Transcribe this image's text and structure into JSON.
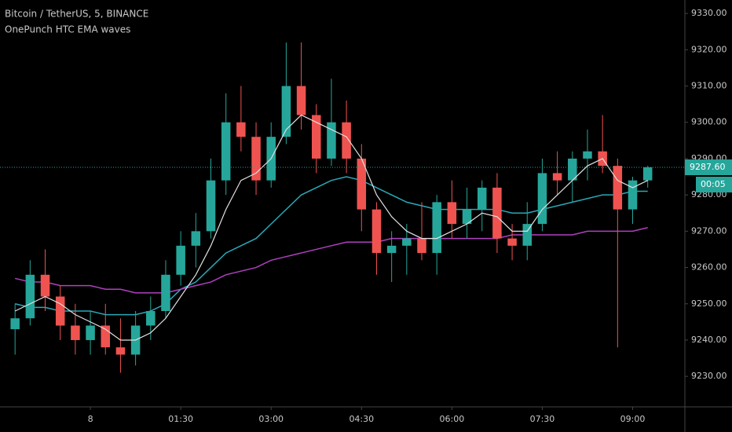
{
  "chart_data": {
    "type": "candlestick",
    "title": "Bitcoin / TetherUS, 5, BINANCE",
    "subtitle": "OnePunch HTC EMA waves",
    "x": [
      -75,
      -60,
      -45,
      -30,
      -15,
      0,
      15,
      30,
      45,
      60,
      75,
      90,
      105,
      120,
      135,
      150,
      165,
      180,
      195,
      210,
      225,
      240,
      255,
      270,
      285,
      300,
      315,
      330,
      345,
      360,
      375,
      390,
      405,
      420,
      435,
      450,
      465,
      480,
      495,
      510,
      525,
      540,
      555
    ],
    "open": [
      9243,
      9246,
      9258,
      9252,
      9244,
      9240,
      9244,
      9238,
      9236,
      9244,
      9248,
      9258,
      9266,
      9270,
      9284,
      9300,
      9296,
      9284,
      9296,
      9310,
      9302,
      9290,
      9300,
      9290,
      9276,
      9264,
      9266,
      9268,
      9264,
      9278,
      9272,
      9276,
      9282,
      9268,
      9266,
      9272,
      9286,
      9284,
      9290,
      9292,
      9288,
      9276,
      9284
    ],
    "high": [
      9250,
      9262,
      9265,
      9255,
      9250,
      9248,
      9250,
      9246,
      9248,
      9252,
      9262,
      9270,
      9275,
      9290,
      9308,
      9310,
      9300,
      9300,
      9322,
      9322,
      9305,
      9312,
      9306,
      9294,
      9278,
      9270,
      9272,
      9278,
      9280,
      9284,
      9282,
      9284,
      9286,
      9272,
      9278,
      9290,
      9292,
      9292,
      9298,
      9302,
      9290,
      9285,
      9288
    ],
    "low": [
      9236,
      9244,
      9248,
      9240,
      9236,
      9236,
      9236,
      9231,
      9233,
      9240,
      9246,
      9255,
      9260,
      9268,
      9280,
      9292,
      9280,
      9282,
      9294,
      9298,
      9286,
      9288,
      9286,
      9270,
      9258,
      9256,
      9258,
      9262,
      9258,
      9268,
      9268,
      9270,
      9264,
      9262,
      9262,
      9270,
      9280,
      9278,
      9284,
      9286,
      9238,
      9272,
      9282
    ],
    "close": [
      9246,
      9258,
      9252,
      9244,
      9240,
      9244,
      9238,
      9236,
      9244,
      9248,
      9258,
      9266,
      9270,
      9284,
      9300,
      9296,
      9284,
      9296,
      9310,
      9302,
      9290,
      9300,
      9290,
      9276,
      9264,
      9266,
      9268,
      9264,
      9278,
      9272,
      9276,
      9282,
      9268,
      9266,
      9272,
      9286,
      9284,
      9290,
      9292,
      9288,
      9276,
      9284,
      9287.6
    ],
    "up_color": "#26a69a",
    "down_color": "#ef5350",
    "series": [
      {
        "color": "#e0e0e0",
        "values": [
          9248,
          9250,
          9252,
          9250,
          9247,
          9245,
          9243,
          9240,
          9240,
          9242,
          9246,
          9252,
          9258,
          9266,
          9276,
          9284,
          9286,
          9290,
          9298,
          9302,
          9300,
          9298,
          9296,
          9290,
          9280,
          9274,
          9270,
          9268,
          9268,
          9270,
          9272,
          9275,
          9274,
          9270,
          9270,
          9276,
          9280,
          9284,
          9288,
          9290,
          9284,
          9282,
          9284
        ]
      },
      {
        "color": "#2aa8b8",
        "values": [
          9250,
          9249,
          9249,
          9248,
          9248,
          9248,
          9247,
          9247,
          9247,
          9248,
          9250,
          9254,
          9256,
          9260,
          9264,
          9266,
          9268,
          9272,
          9276,
          9280,
          9282,
          9284,
          9285,
          9284,
          9282,
          9280,
          9278,
          9277,
          9276,
          9276,
          9276,
          9276,
          9276,
          9275,
          9275,
          9276,
          9277,
          9278,
          9279,
          9280,
          9280,
          9281,
          9281
        ]
      },
      {
        "color": "#b040c0",
        "values": [
          9257,
          9256,
          9256,
          9255,
          9255,
          9255,
          9254,
          9254,
          9253,
          9253,
          9253,
          9254,
          9255,
          9256,
          9258,
          9259,
          9260,
          9262,
          9263,
          9264,
          9265,
          9266,
          9267,
          9267,
          9267,
          9268,
          9268,
          9268,
          9268,
          9268,
          9268,
          9268,
          9268,
          9269,
          9269,
          9269,
          9269,
          9269,
          9270,
          9270,
          9270,
          9270,
          9271
        ]
      }
    ],
    "xlim": [
      -90,
      592
    ],
    "xticks": [
      {
        "value": 0,
        "label": "8"
      },
      {
        "value": 90,
        "label": "01:30"
      },
      {
        "value": 180,
        "label": "03:00"
      },
      {
        "value": 270,
        "label": "04:30"
      },
      {
        "value": 360,
        "label": "06:00"
      },
      {
        "value": 450,
        "label": "07:30"
      },
      {
        "value": 540,
        "label": "09:00"
      }
    ],
    "ylim": [
      9221.6,
      9333.7
    ],
    "yticks": [
      {
        "value": 9230,
        "label": "9230.00"
      },
      {
        "value": 9240,
        "label": "9240.00"
      },
      {
        "value": 9250,
        "label": "9250.00"
      },
      {
        "value": 9260,
        "label": "9260.00"
      },
      {
        "value": 9270,
        "label": "9270.00"
      },
      {
        "value": 9280,
        "label": "9280.00"
      },
      {
        "value": 9290,
        "label": "9290.00"
      },
      {
        "value": 9300,
        "label": "9300.00"
      },
      {
        "value": 9310,
        "label": "9310.00"
      },
      {
        "value": 9320,
        "label": "9320.00"
      },
      {
        "value": 9330,
        "label": "9330.00"
      }
    ],
    "last_price": {
      "value": 9287.6,
      "label": "9287.60"
    },
    "countdown": "00:05"
  }
}
